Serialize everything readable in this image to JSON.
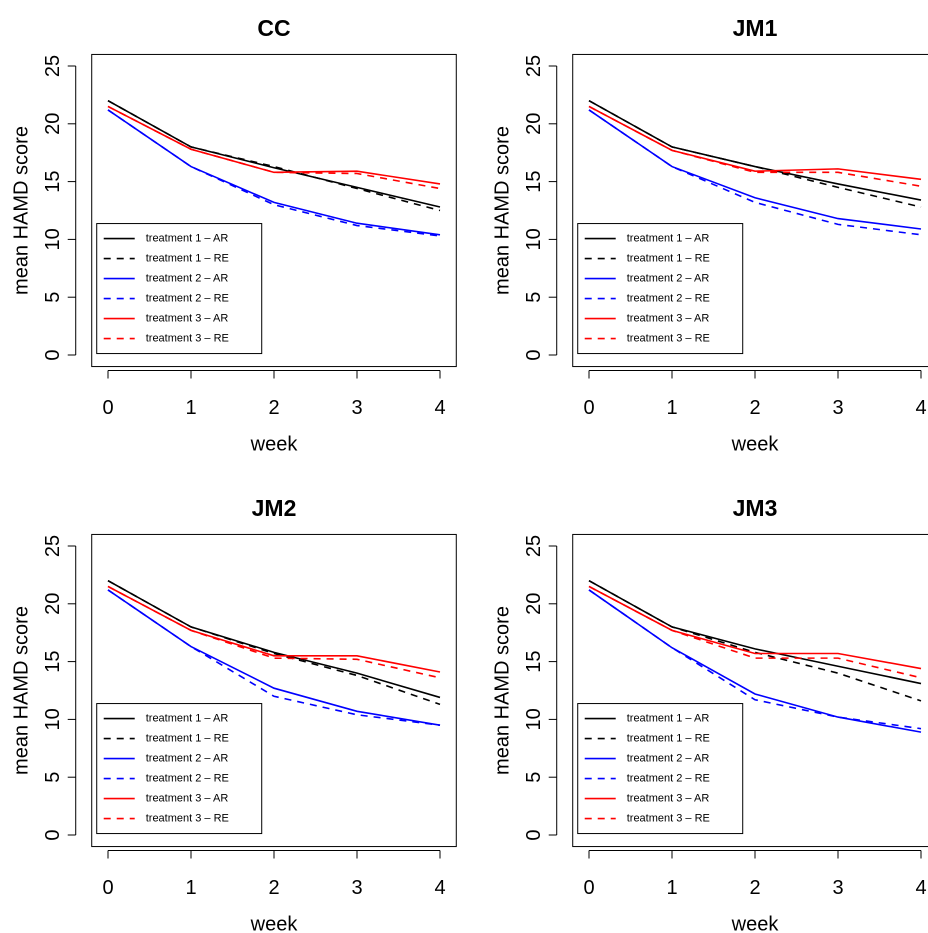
{
  "chart_data": [
    {
      "type": "line",
      "title": "CC",
      "xlabel": "week",
      "ylabel": "mean HAMD score",
      "x": [
        0,
        1,
        2,
        3,
        4
      ],
      "xlim": [
        0,
        4
      ],
      "ylim": [
        0,
        25
      ],
      "xticks": [
        0,
        1,
        2,
        3,
        4
      ],
      "yticks": [
        0,
        5,
        10,
        15,
        20,
        25
      ],
      "legend": "bottomleft",
      "series": [
        {
          "name": "treatment 1 – AR",
          "color": "#000000",
          "dashed": false,
          "values": [
            22,
            18,
            16.2,
            14.5,
            12.8
          ]
        },
        {
          "name": "treatment 1 – RE",
          "color": "#000000",
          "dashed": true,
          "values": [
            22,
            18,
            16.3,
            14.4,
            12.5
          ]
        },
        {
          "name": "treatment 2 – AR",
          "color": "#0000ff",
          "dashed": false,
          "values": [
            21.2,
            16.3,
            13.2,
            11.4,
            10.4
          ]
        },
        {
          "name": "treatment 2 – RE",
          "color": "#0000ff",
          "dashed": true,
          "values": [
            21.2,
            16.3,
            13.0,
            11.2,
            10.3
          ]
        },
        {
          "name": "treatment 3 – AR",
          "color": "#ff0000",
          "dashed": false,
          "values": [
            21.5,
            17.8,
            15.8,
            15.9,
            14.8
          ]
        },
        {
          "name": "treatment 3 – RE",
          "color": "#ff0000",
          "dashed": true,
          "values": [
            21.5,
            17.8,
            15.8,
            15.7,
            14.4
          ]
        }
      ]
    },
    {
      "type": "line",
      "title": "JM1",
      "xlabel": "week",
      "ylabel": "mean HAMD score",
      "x": [
        0,
        1,
        2,
        3,
        4
      ],
      "xlim": [
        0,
        4
      ],
      "ylim": [
        0,
        25
      ],
      "xticks": [
        0,
        1,
        2,
        3,
        4
      ],
      "yticks": [
        0,
        5,
        10,
        15,
        20,
        25
      ],
      "legend": "bottomleft",
      "series": [
        {
          "name": "treatment 1 – AR",
          "color": "#000000",
          "dashed": false,
          "values": [
            22,
            18,
            16.3,
            14.8,
            13.4
          ]
        },
        {
          "name": "treatment 1 – RE",
          "color": "#000000",
          "dashed": true,
          "values": [
            22,
            18,
            16.3,
            14.5,
            12.8
          ]
        },
        {
          "name": "treatment 2 – AR",
          "color": "#0000ff",
          "dashed": false,
          "values": [
            21.2,
            16.3,
            13.6,
            11.8,
            10.9
          ]
        },
        {
          "name": "treatment 2 – RE",
          "color": "#0000ff",
          "dashed": true,
          "values": [
            21.2,
            16.3,
            13.2,
            11.3,
            10.4
          ]
        },
        {
          "name": "treatment 3 – AR",
          "color": "#ff0000",
          "dashed": false,
          "values": [
            21.5,
            17.7,
            15.9,
            16.1,
            15.2
          ]
        },
        {
          "name": "treatment 3 – RE",
          "color": "#ff0000",
          "dashed": true,
          "values": [
            21.5,
            17.7,
            15.8,
            15.8,
            14.6
          ]
        }
      ]
    },
    {
      "type": "line",
      "title": "JM2",
      "xlabel": "week",
      "ylabel": "mean HAMD score",
      "x": [
        0,
        1,
        2,
        3,
        4
      ],
      "xlim": [
        0,
        4
      ],
      "ylim": [
        0,
        25
      ],
      "xticks": [
        0,
        1,
        2,
        3,
        4
      ],
      "yticks": [
        0,
        5,
        10,
        15,
        20,
        25
      ],
      "legend": "bottomleft",
      "series": [
        {
          "name": "treatment 1 – AR",
          "color": "#000000",
          "dashed": false,
          "values": [
            22,
            18,
            15.8,
            14.0,
            11.9
          ]
        },
        {
          "name": "treatment 1 – RE",
          "color": "#000000",
          "dashed": true,
          "values": [
            22,
            18,
            15.7,
            13.8,
            11.3
          ]
        },
        {
          "name": "treatment 2 – AR",
          "color": "#0000ff",
          "dashed": false,
          "values": [
            21.2,
            16.3,
            12.7,
            10.7,
            9.5
          ]
        },
        {
          "name": "treatment 2 – RE",
          "color": "#0000ff",
          "dashed": true,
          "values": [
            21.2,
            16.3,
            12.0,
            10.4,
            9.5
          ]
        },
        {
          "name": "treatment 3 – AR",
          "color": "#ff0000",
          "dashed": false,
          "values": [
            21.5,
            17.7,
            15.5,
            15.5,
            14.1
          ]
        },
        {
          "name": "treatment 3 – RE",
          "color": "#ff0000",
          "dashed": true,
          "values": [
            21.5,
            17.7,
            15.3,
            15.2,
            13.6
          ]
        }
      ]
    },
    {
      "type": "line",
      "title": "JM3",
      "xlabel": "week",
      "ylabel": "mean HAMD score",
      "x": [
        0,
        1,
        2,
        3,
        4
      ],
      "xlim": [
        0,
        4
      ],
      "ylim": [
        0,
        25
      ],
      "xticks": [
        0,
        1,
        2,
        3,
        4
      ],
      "yticks": [
        0,
        5,
        10,
        15,
        20,
        25
      ],
      "legend": "bottomleft",
      "series": [
        {
          "name": "treatment 1 – AR",
          "color": "#000000",
          "dashed": false,
          "values": [
            22,
            18,
            16.1,
            14.6,
            13.1
          ]
        },
        {
          "name": "treatment 1 – RE",
          "color": "#000000",
          "dashed": true,
          "values": [
            22,
            18,
            15.8,
            14.0,
            11.6
          ]
        },
        {
          "name": "treatment 2 – AR",
          "color": "#0000ff",
          "dashed": false,
          "values": [
            21.2,
            16.2,
            12.2,
            10.2,
            8.9
          ]
        },
        {
          "name": "treatment 2 – RE",
          "color": "#0000ff",
          "dashed": true,
          "values": [
            21.2,
            16.2,
            11.7,
            10.2,
            9.2
          ]
        },
        {
          "name": "treatment 3 – AR",
          "color": "#ff0000",
          "dashed": false,
          "values": [
            21.5,
            17.7,
            15.7,
            15.7,
            14.4
          ]
        },
        {
          "name": "treatment 3 – RE",
          "color": "#ff0000",
          "dashed": true,
          "values": [
            21.5,
            17.7,
            15.3,
            15.3,
            13.6
          ]
        }
      ]
    }
  ]
}
